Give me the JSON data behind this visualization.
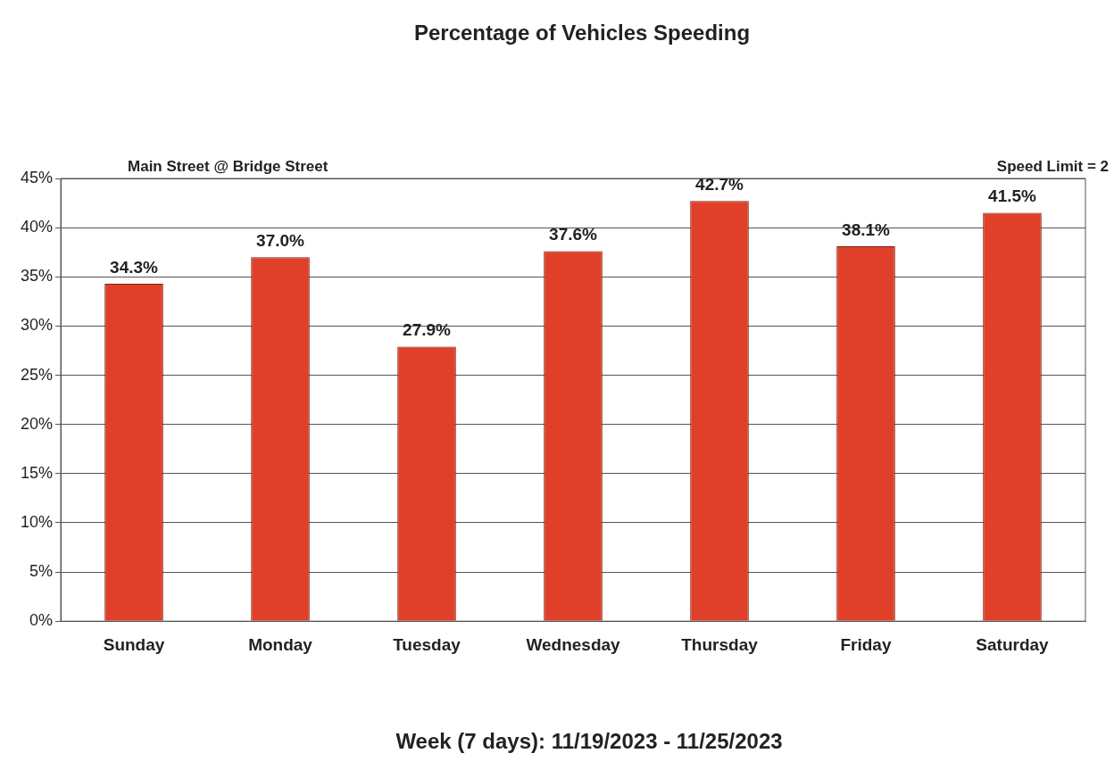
{
  "chart_data": {
    "type": "bar",
    "title": "Percentage of Vehicles Speeding",
    "subtitle": "Main Street @ Bridge Street",
    "xlabel": "Week (7 days): 11/19/2023 - 11/25/2023",
    "annotations": [
      "Speed Limit = 2"
    ],
    "categories": [
      "Sunday",
      "Monday",
      "Tuesday",
      "Wednesday",
      "Thursday",
      "Friday",
      "Saturday"
    ],
    "values": [
      34.3,
      37.0,
      27.9,
      37.6,
      42.7,
      38.1,
      41.5
    ],
    "value_labels": [
      "34.3%",
      "37.0%",
      "27.9%",
      "37.6%",
      "42.7%",
      "38.1%",
      "41.5%"
    ],
    "color": "#e0402a",
    "ylim": [
      0,
      45
    ],
    "yticks": [
      {
        "value": 0,
        "label": "0%"
      },
      {
        "value": 5,
        "label": "5%"
      },
      {
        "value": 10,
        "label": "10%"
      },
      {
        "value": 15,
        "label": "15%"
      },
      {
        "value": 20,
        "label": "20%"
      },
      {
        "value": 25,
        "label": "25%"
      },
      {
        "value": 30,
        "label": "30%"
      },
      {
        "value": 35,
        "label": "35%"
      },
      {
        "value": 40,
        "label": "40%"
      },
      {
        "value": 45,
        "label": "45%"
      }
    ],
    "grid": "y",
    "legend": false
  }
}
